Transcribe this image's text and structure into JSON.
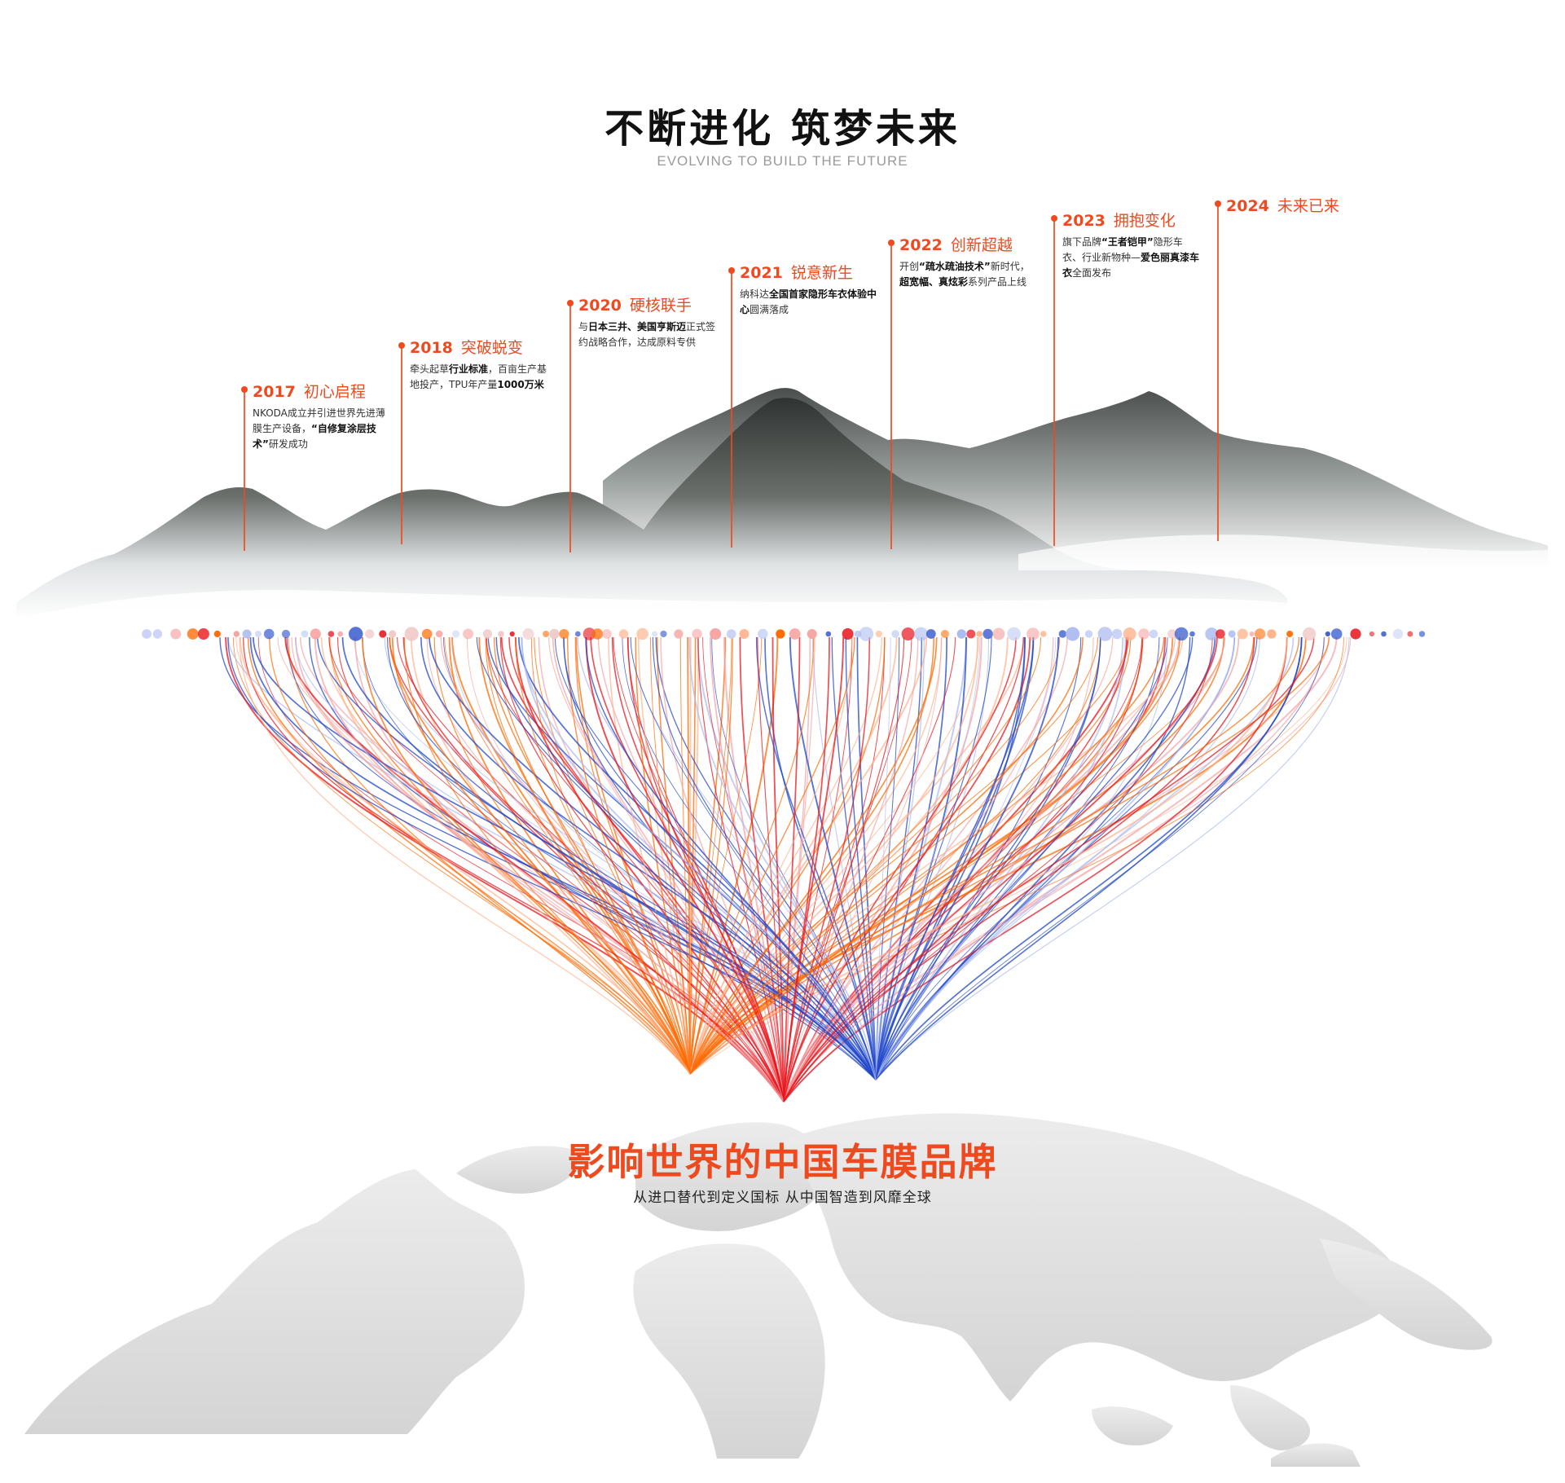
{
  "header": {
    "title": "不断进化  筑梦未来",
    "subtitle": "EVOLVING TO BUILD THE FUTURE"
  },
  "milestones": [
    {
      "year": "2017",
      "title": "初心启程",
      "desc": [
        "NKODA成立并引进世界先进薄膜生产设备，",
        {
          "b": "“自修复涂层技术”"
        },
        "研发成功"
      ]
    },
    {
      "year": "2018",
      "title": "突破蜕变",
      "desc": [
        "牵头起草",
        {
          "b": "行业标准"
        },
        "，百亩生产基地投产，TPU年产量",
        {
          "b": "1000万米"
        }
      ]
    },
    {
      "year": "2020",
      "title": "硬核联手",
      "desc": [
        "与",
        {
          "b": "日本三井、美国亨斯迈"
        },
        "正式签约战略合作，达成原料专供"
      ]
    },
    {
      "year": "2021",
      "title": "锐意新生",
      "desc": [
        "纳科达",
        {
          "b": "全国首家隐形车衣体验中心"
        },
        "圆满落成"
      ]
    },
    {
      "year": "2022",
      "title": "创新超越",
      "desc": [
        "开创",
        {
          "b": "“疏水疏油技术”"
        },
        "新时代，",
        {
          "b": "超宽幅、真炫彩"
        },
        "系列产品上线"
      ]
    },
    {
      "year": "2023",
      "title": "拥抱变化",
      "desc": [
        "旗下品牌",
        {
          "b": "“王者铠甲”"
        },
        "隐形车衣、行业新物种—",
        {
          "b": "爱色丽真漆车衣"
        },
        "全面发布"
      ]
    },
    {
      "year": "2024",
      "title": "未来已来",
      "desc": []
    }
  ],
  "brand": {
    "title": "影响世界的中国车膜品牌",
    "subtitle": "从进口替代到定义国标  从中国智造到风靡全球"
  },
  "colors": {
    "accent": "#ef4a1f",
    "orange": "#ff6a00",
    "red": "#e8141c",
    "blue": "#1e46c8",
    "mountain_dark": "#3e4240",
    "snow": "#f4f5f6",
    "map": "#d9d9d9"
  },
  "decor": {
    "mountains": "snowy-mountain-range",
    "map": "world-map-silhouette",
    "lines": "converging-color-lines"
  }
}
